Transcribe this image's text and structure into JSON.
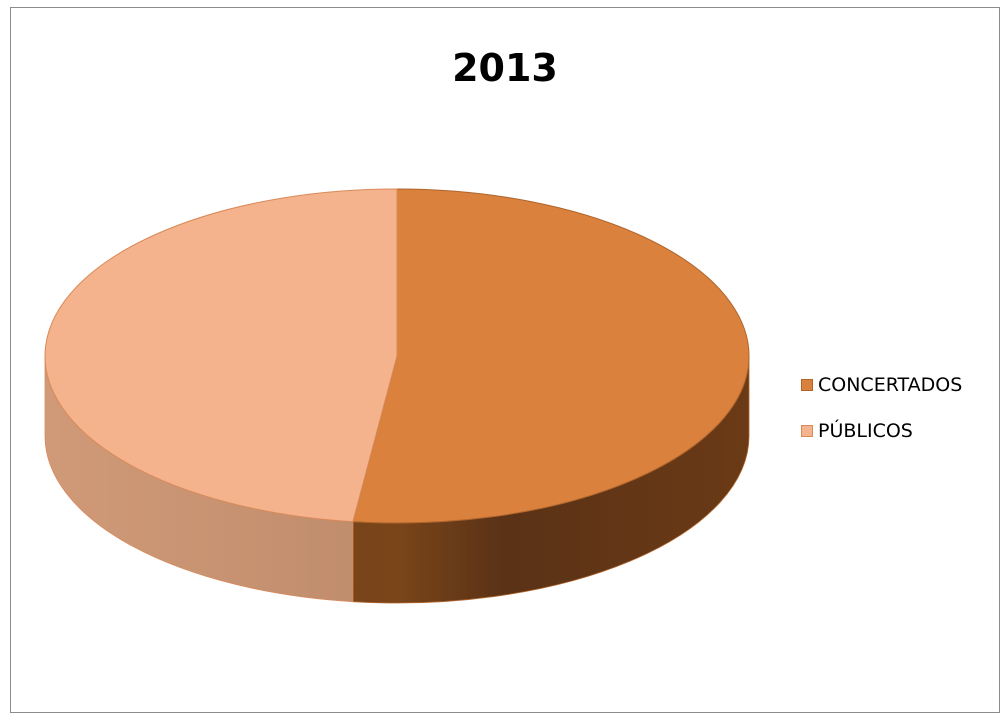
{
  "chart_data": {
    "type": "pie",
    "title": "2013",
    "style": "3d",
    "legend_position": "right",
    "slices": [
      {
        "label": "CONCERTADOS",
        "value": 52,
        "color": "#d9813d",
        "side_color": "#6b3a16",
        "edge_color": "#b0652c"
      },
      {
        "label": "PÚBLICOS",
        "value": 48,
        "color": "#f4b38c",
        "side_color": "#b98565",
        "edge_color": "#d98a5a"
      }
    ]
  }
}
